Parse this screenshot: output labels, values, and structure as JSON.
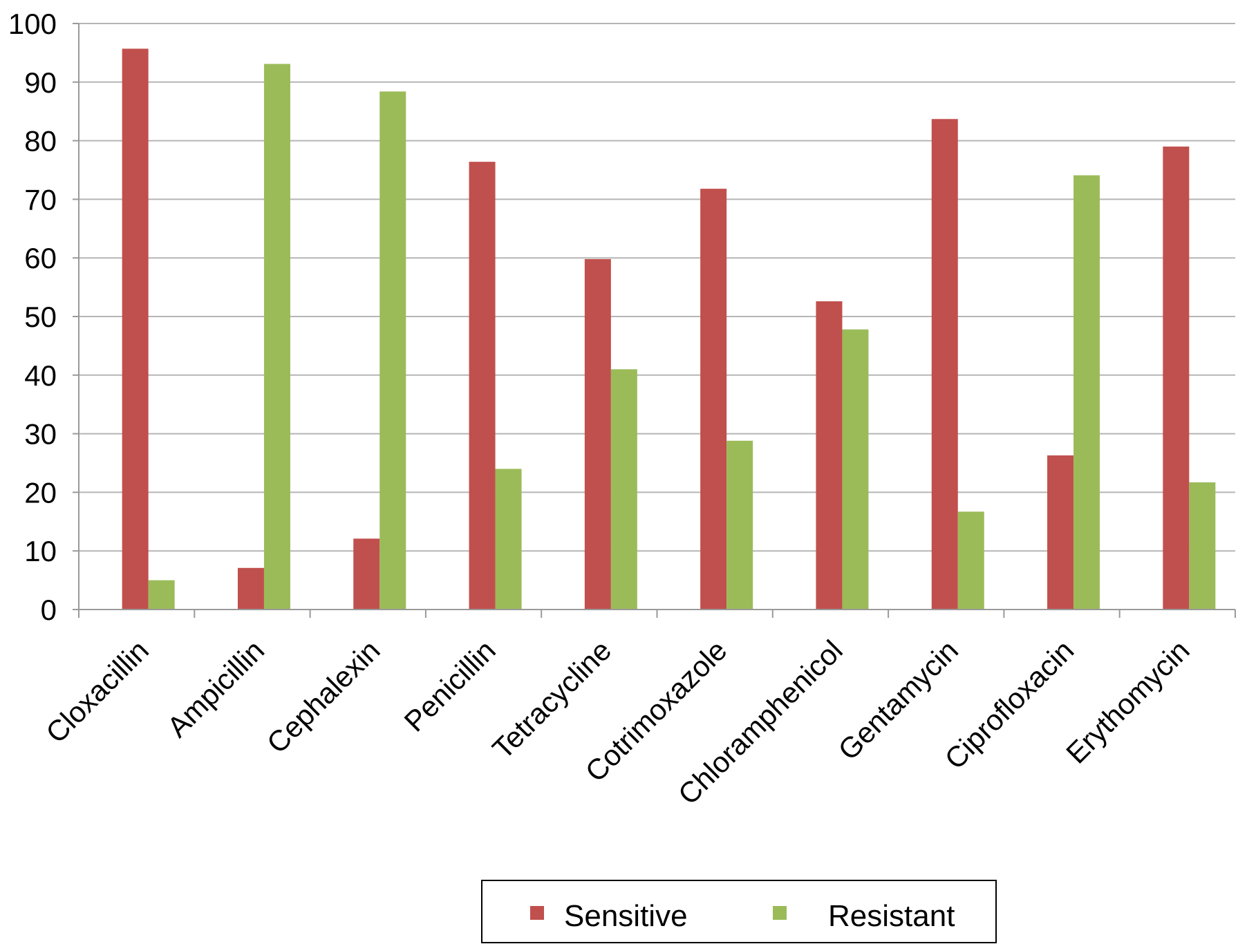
{
  "chart_data": {
    "type": "bar",
    "title": "",
    "xlabel": "",
    "ylabel": "",
    "ylim": [
      0,
      100
    ],
    "yticks": [
      0,
      10,
      20,
      30,
      40,
      50,
      60,
      70,
      80,
      90,
      100
    ],
    "grid": true,
    "legend_position": "bottom-center",
    "categories": [
      "Cloxacillin",
      "Ampicillin",
      "Cephalexin",
      "Penicillin",
      "Tetracycline",
      "Cotrimoxazole",
      "Chloramphenicol",
      "Gentamycin",
      "Ciprofloxacin",
      "Erythomycin"
    ],
    "series": [
      {
        "name": "Sensitive",
        "color": "#c0504d",
        "values": [
          95.7,
          7.1,
          12.1,
          76.4,
          59.8,
          71.8,
          52.6,
          83.7,
          26.3,
          79.0
        ]
      },
      {
        "name": "Resistant",
        "color": "#9bbb59",
        "values": [
          5.0,
          93.1,
          88.4,
          24.0,
          41.0,
          28.8,
          47.8,
          16.7,
          74.1,
          21.7
        ]
      }
    ]
  }
}
